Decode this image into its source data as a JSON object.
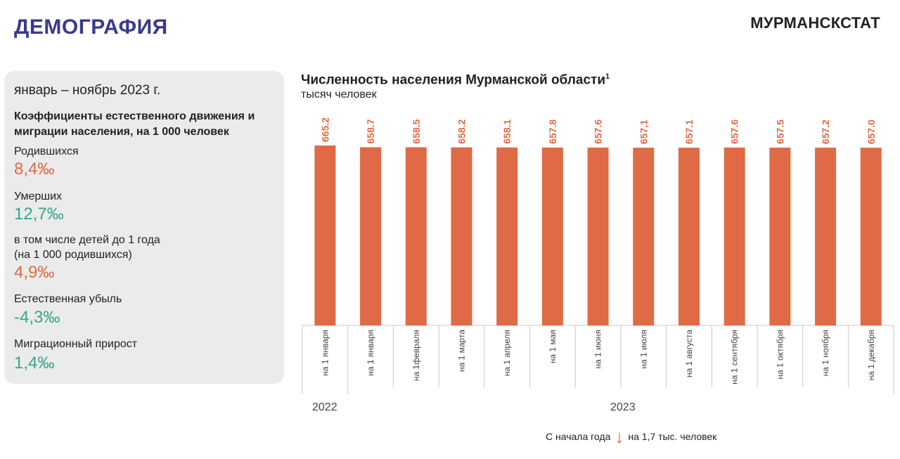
{
  "header": {
    "title": "ДЕМОГРАФИЯ",
    "brand": "МУРМАНСКСТАТ"
  },
  "sidebar": {
    "period": "январь – ноябрь 2023 г.",
    "coef_title": "Коэффициенты естественного движения и миграции населения, на 1 000 человек",
    "metrics": [
      {
        "label": "Родившихся",
        "value": "8,4‰",
        "color": "#e06a45"
      },
      {
        "label": "Умерших",
        "value": "12,7‰",
        "color": "#3aa58c"
      },
      {
        "label": "в том числе детей до 1 года (на 1 000 родившихся)",
        "value": "4,9‰",
        "color": "#e06a45"
      },
      {
        "label": "Естественная убыль",
        "value": "-4,3‰",
        "color": "#3aa58c"
      },
      {
        "label": "Миграционный прирост",
        "value": "1,4‰",
        "color": "#3aa58c"
      }
    ]
  },
  "chart_data": {
    "type": "bar",
    "title": "Численность населения Мурманской области",
    "title_sup": "1",
    "unit": "тысяч человек",
    "categories": [
      "на 1 января",
      "на 1 января",
      "на 1февраля",
      "на 1 марта",
      "на 1 апреля",
      "на 1 мая",
      "на 1 июня",
      "на 1 июля",
      "на 1 августа",
      "на 1 сентября",
      "на 1 октября",
      "на 1 ноября",
      "на 1 декабря"
    ],
    "values": [
      665.2,
      658.7,
      658.5,
      658.2,
      658.1,
      657.8,
      657.6,
      657.1,
      657.1,
      657.6,
      657.5,
      657.2,
      657.0
    ],
    "labels": [
      "665.2",
      "658.7",
      "658.5",
      "658.2",
      "658.1",
      "657.8",
      "657.6",
      "657,1",
      "657.1",
      "657.6",
      "657.5",
      "657.2",
      "657.0"
    ],
    "year_groups": [
      {
        "label": "2022",
        "count": 1
      },
      {
        "label": "2023",
        "count": 12
      }
    ],
    "bar_color": "#e06a45",
    "note": {
      "prefix": "С начала года",
      "arrow": "↓",
      "text": "на 1,7 тыс. человек"
    }
  }
}
